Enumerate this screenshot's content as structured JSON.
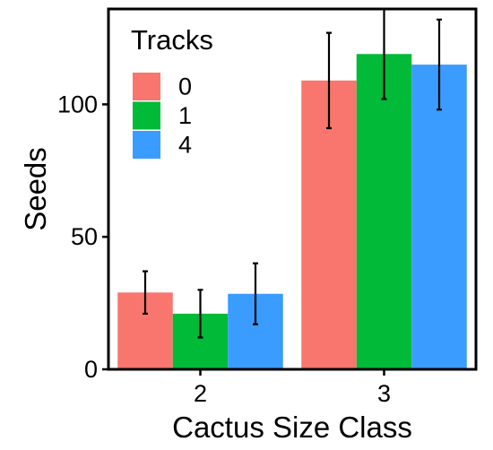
{
  "chart_data": {
    "type": "bar",
    "xlabel": "Cactus Size Class",
    "ylabel": "Seeds",
    "categories": [
      "2",
      "3"
    ],
    "legend_title": "Tracks",
    "legend_position": "top-left",
    "grid": false,
    "ylim": [
      0,
      136
    ],
    "yticks": [
      0,
      50,
      100
    ],
    "series": [
      {
        "name": "0",
        "color": "#F8766D",
        "values": [
          29,
          109
        ],
        "errors": [
          8,
          18
        ]
      },
      {
        "name": "1",
        "color": "#00BA38",
        "values": [
          21,
          119
        ],
        "errors": [
          9,
          17
        ]
      },
      {
        "name": "4",
        "color": "#3B9CFF",
        "values": [
          28.5,
          115
        ],
        "errors": [
          11.5,
          17
        ]
      }
    ]
  }
}
